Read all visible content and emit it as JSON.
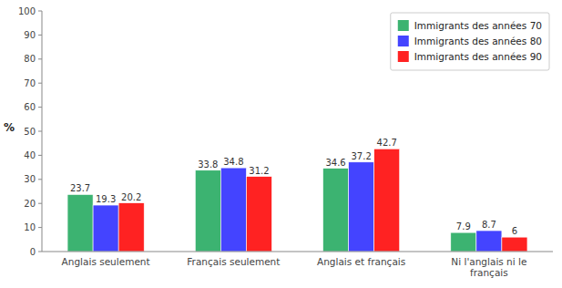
{
  "chart_data": {
    "type": "bar",
    "categories": [
      "Anglais seulement",
      "Français seulement",
      "Anglais et français",
      "Ni l'anglais ni le\nfrançais"
    ],
    "series": [
      {
        "name": "Immigrants des années 70",
        "color": "#3CB371",
        "values": [
          23.7,
          33.8,
          34.6,
          7.9
        ]
      },
      {
        "name": "Immigrants des années 80",
        "color": "#4444FF",
        "values": [
          19.3,
          34.8,
          37.2,
          8.7
        ]
      },
      {
        "name": "Immigrants des années 90",
        "color": "#FF2222",
        "values": [
          20.2,
          31.2,
          42.7,
          6
        ]
      }
    ],
    "y_label": "%",
    "ylim": [
      0,
      100
    ],
    "yticks": [
      0,
      10,
      20,
      30,
      40,
      50,
      60,
      70,
      80,
      90,
      100
    ],
    "data_labels": true,
    "legend": "upper right",
    "grid": false
  }
}
